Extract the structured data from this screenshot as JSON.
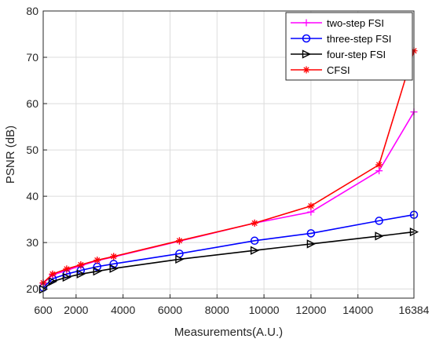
{
  "chart_data": {
    "type": "line",
    "title": "",
    "xlabel": "Measurements(A.U.)",
    "ylabel": "PSNR (dB)",
    "xlim": [
      600,
      16384
    ],
    "ylim": [
      18,
      80
    ],
    "xticks": [
      600,
      2000,
      4000,
      6000,
      8000,
      10000,
      12000,
      14000,
      16384
    ],
    "yticks": [
      20,
      30,
      40,
      50,
      60,
      70,
      80
    ],
    "grid": true,
    "legend_position": "top-right",
    "x": [
      600,
      1000,
      1600,
      2200,
      2900,
      3600,
      6400,
      9600,
      12000,
      14900,
      16384
    ],
    "series": [
      {
        "name": "two-step FSI",
        "color": "#ff00ff",
        "marker": "plus",
        "values": [
          21.2,
          23.0,
          24.0,
          25.0,
          26.1,
          26.9,
          30.3,
          34.2,
          36.6,
          45.5,
          58.2
        ]
      },
      {
        "name": "three-step FSI",
        "color": "#0000ff",
        "marker": "circle",
        "values": [
          20.3,
          22.2,
          23.2,
          24.0,
          24.8,
          25.4,
          27.6,
          30.4,
          32.0,
          34.7,
          36.0
        ]
      },
      {
        "name": "four-step FSI",
        "color": "#000000",
        "marker": "triangle-right",
        "values": [
          19.9,
          21.6,
          22.5,
          23.2,
          23.8,
          24.4,
          26.4,
          28.3,
          29.7,
          31.4,
          32.3
        ]
      },
      {
        "name": "CFSI",
        "color": "#ff0000",
        "marker": "asterisk",
        "values": [
          21.3,
          23.2,
          24.3,
          25.2,
          26.2,
          27.0,
          30.4,
          34.2,
          37.9,
          46.8,
          71.4
        ]
      }
    ]
  }
}
